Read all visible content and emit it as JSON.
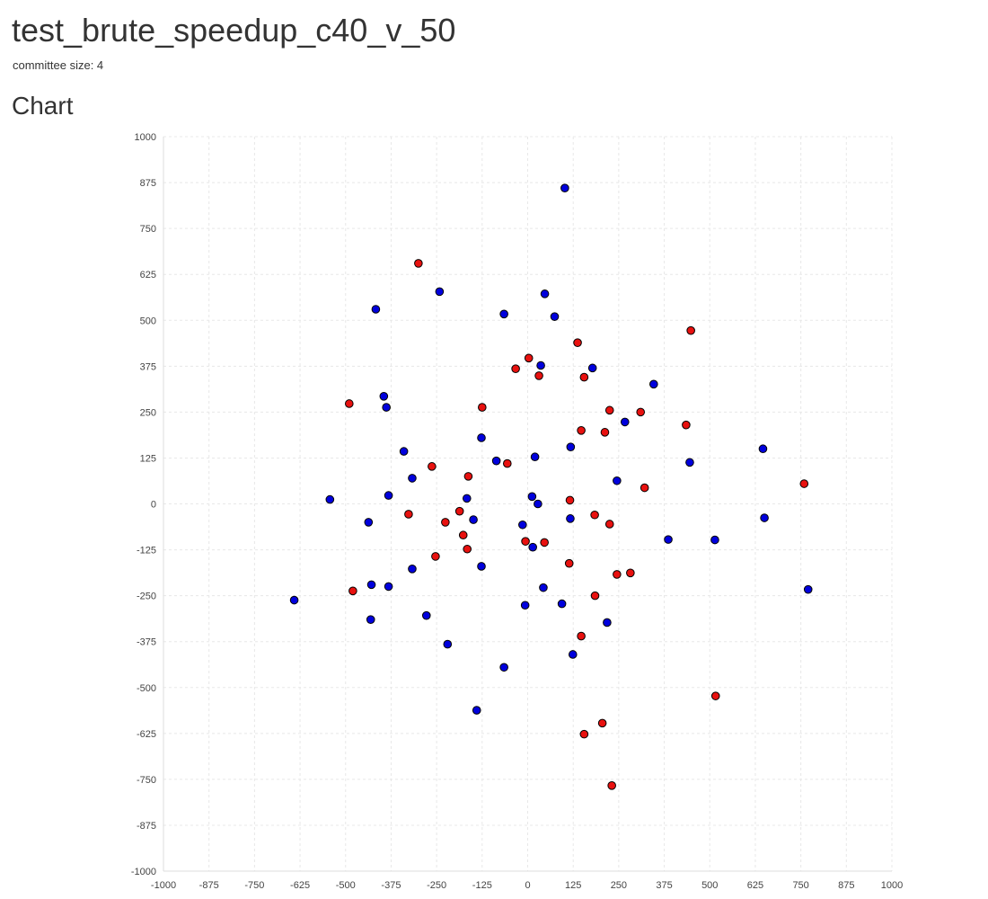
{
  "page": {
    "title": "test_brute_speedup_c40_v_50",
    "subtitle": "committee size: 4",
    "chart_heading": "Chart"
  },
  "colors": {
    "series_red": "#e8110f",
    "series_blue": "#0000dd",
    "marker_stroke": "#000000",
    "grid": "#e8e8e8",
    "axis": "#dddddd"
  },
  "chart_data": {
    "type": "scatter",
    "title": "",
    "xlabel": "",
    "ylabel": "",
    "xlim": [
      -1000,
      1000
    ],
    "ylim": [
      -1000,
      1000
    ],
    "x_ticks": [
      -1000,
      -875,
      -750,
      -625,
      -500,
      -375,
      -250,
      -125,
      0,
      125,
      250,
      375,
      500,
      625,
      750,
      875,
      1000
    ],
    "y_ticks": [
      -1000,
      -875,
      -750,
      -625,
      -500,
      -375,
      -250,
      -125,
      0,
      125,
      250,
      375,
      500,
      625,
      750,
      875,
      1000
    ],
    "grid": true,
    "legend": "none",
    "series": [
      {
        "color": "#e8110f",
        "points": [
          [
            -300,
            655
          ],
          [
            -490,
            273
          ],
          [
            -125,
            263
          ],
          [
            -33,
            368
          ],
          [
            3,
            397
          ],
          [
            31,
            349
          ],
          [
            137,
            439
          ],
          [
            155,
            345
          ],
          [
            448,
            472
          ],
          [
            225,
            255
          ],
          [
            310,
            250
          ],
          [
            435,
            215
          ],
          [
            147,
            200
          ],
          [
            212,
            195
          ],
          [
            -263,
            102
          ],
          [
            -163,
            75
          ],
          [
            -56,
            110
          ],
          [
            759,
            55
          ],
          [
            321,
            44
          ],
          [
            116,
            10
          ],
          [
            -187,
            -20
          ],
          [
            -327,
            -28
          ],
          [
            -226,
            -50
          ],
          [
            184,
            -30
          ],
          [
            225,
            -55
          ],
          [
            -177,
            -85
          ],
          [
            -6,
            -102
          ],
          [
            46,
            -105
          ],
          [
            -166,
            -123
          ],
          [
            -253,
            -143
          ],
          [
            114,
            -162
          ],
          [
            245,
            -192
          ],
          [
            282,
            -188
          ],
          [
            -480,
            -237
          ],
          [
            185,
            -250
          ],
          [
            147,
            -360
          ],
          [
            516,
            -523
          ],
          [
            205,
            -597
          ],
          [
            155,
            -627
          ],
          [
            231,
            -767
          ]
        ]
      },
      {
        "color": "#0000dd",
        "points": [
          [
            102,
            860
          ],
          [
            -242,
            578
          ],
          [
            47,
            572
          ],
          [
            -417,
            530
          ],
          [
            -65,
            517
          ],
          [
            74,
            510
          ],
          [
            178,
            370
          ],
          [
            36,
            377
          ],
          [
            346,
            326
          ],
          [
            -395,
            293
          ],
          [
            -388,
            263
          ],
          [
            267,
            223
          ],
          [
            -127,
            180
          ],
          [
            118,
            155
          ],
          [
            -340,
            143
          ],
          [
            646,
            150
          ],
          [
            445,
            113
          ],
          [
            -86,
            117
          ],
          [
            20,
            128
          ],
          [
            -317,
            70
          ],
          [
            245,
            63
          ],
          [
            -382,
            23
          ],
          [
            12,
            20
          ],
          [
            -167,
            15
          ],
          [
            -543,
            12
          ],
          [
            28,
            0
          ],
          [
            650,
            -38
          ],
          [
            -149,
            -43
          ],
          [
            117,
            -40
          ],
          [
            -437,
            -50
          ],
          [
            -14,
            -57
          ],
          [
            386,
            -97
          ],
          [
            514,
            -98
          ],
          [
            14,
            -118
          ],
          [
            -127,
            -170
          ],
          [
            -317,
            -177
          ],
          [
            -429,
            -220
          ],
          [
            -382,
            -225
          ],
          [
            43,
            -228
          ],
          [
            770,
            -233
          ],
          [
            -641,
            -262
          ],
          [
            94,
            -272
          ],
          [
            -7,
            -276
          ],
          [
            -278,
            -304
          ],
          [
            -431,
            -315
          ],
          [
            218,
            -323
          ],
          [
            -220,
            -382
          ],
          [
            124,
            -410
          ],
          [
            -65,
            -445
          ],
          [
            -140,
            -562
          ]
        ]
      }
    ]
  }
}
